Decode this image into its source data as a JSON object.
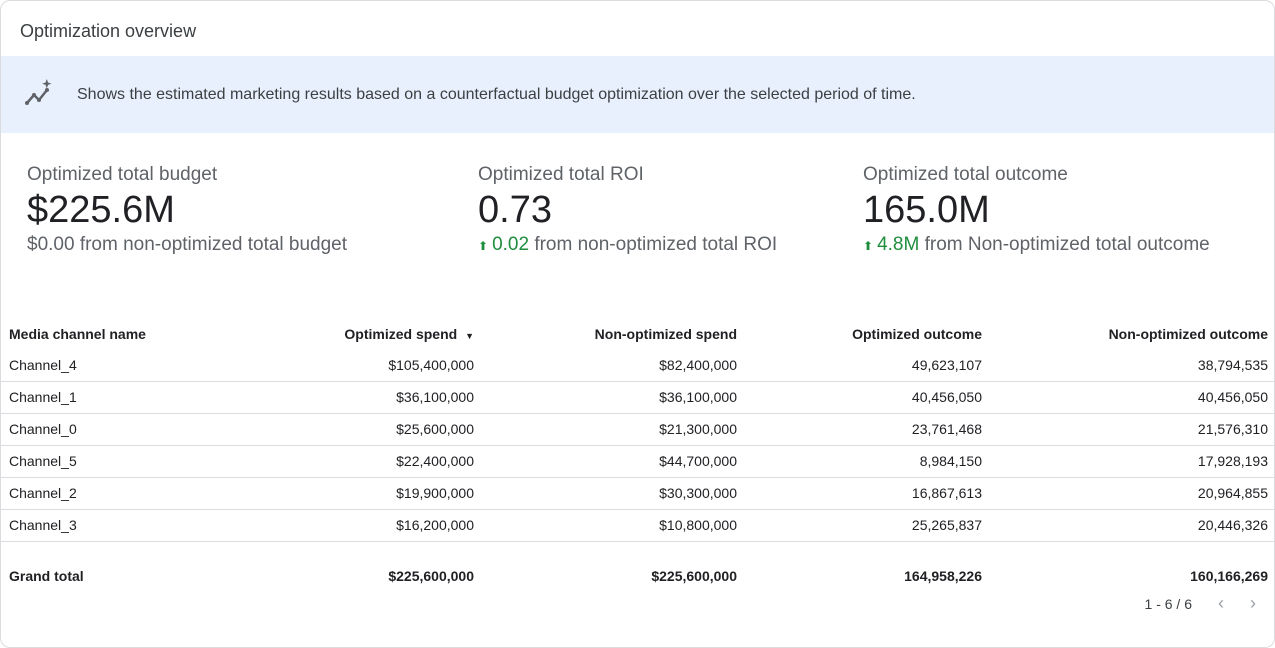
{
  "title": "Optimization overview",
  "banner": {
    "icon": "insights-icon",
    "text": "Shows the estimated marketing results based on a counterfactual budget optimization over the selected period of time."
  },
  "kpis": [
    {
      "label": "Optimized total budget",
      "value": "$225.6M",
      "delta": "$0.00",
      "delta_text": " from non-optimized total budget"
    },
    {
      "label": "Optimized total ROI",
      "value": "0.73",
      "delta": "0.02",
      "delta_text": " from non-optimized total ROI",
      "direction": "up"
    },
    {
      "label": "Optimized total outcome",
      "value": "165.0M",
      "delta": "4.8M",
      "delta_text": " from Non-optimized total outcome",
      "direction": "up"
    }
  ],
  "colors": {
    "up": "#1e8e3e",
    "banner": "#e8f0fe"
  },
  "table": {
    "headers": [
      "Media channel name",
      "Optimized spend",
      "Non-optimized spend",
      "Optimized outcome",
      "Non-optimized outcome"
    ],
    "sort_indicator": "▼",
    "rows": [
      [
        "Channel_4",
        "$105,400,000",
        "$82,400,000",
        "49,623,107",
        "38,794,535"
      ],
      [
        "Channel_1",
        "$36,100,000",
        "$36,100,000",
        "40,456,050",
        "40,456,050"
      ],
      [
        "Channel_0",
        "$25,600,000",
        "$21,300,000",
        "23,761,468",
        "21,576,310"
      ],
      [
        "Channel_5",
        "$22,400,000",
        "$44,700,000",
        "8,984,150",
        "17,928,193"
      ],
      [
        "Channel_2",
        "$19,900,000",
        "$30,300,000",
        "16,867,613",
        "20,964,855"
      ],
      [
        "Channel_3",
        "$16,200,000",
        "$10,800,000",
        "25,265,837",
        "20,446,326"
      ]
    ],
    "total": [
      "Grand total",
      "$225,600,000",
      "$225,600,000",
      "164,958,226",
      "160,166,269"
    ]
  },
  "pagination": {
    "text": "1 - 6 / 6",
    "prev": "‹",
    "next": "›"
  }
}
